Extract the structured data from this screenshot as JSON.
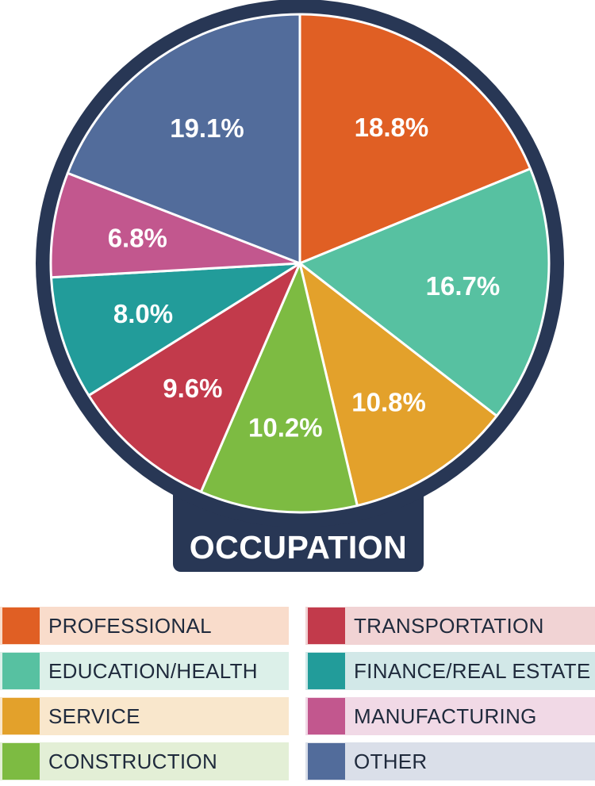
{
  "chart_data": {
    "type": "pie",
    "title": "OCCUPATION",
    "slices": [
      {
        "label": "PROFESSIONAL",
        "value": 18.8,
        "display": "18.8%",
        "color": "#e05f24",
        "legend_bg": "#f9dccb"
      },
      {
        "label": "EDUCATION/HEALTH",
        "value": 16.7,
        "display": "16.7%",
        "color": "#57c1a1",
        "legend_bg": "#dcf0e9"
      },
      {
        "label": "SERVICE",
        "value": 10.8,
        "display": "10.8%",
        "color": "#e3a12b",
        "legend_bg": "#f9e7cc"
      },
      {
        "label": "CONSTRUCTION",
        "value": 10.2,
        "display": "10.2%",
        "color": "#7dbb42",
        "legend_bg": "#e3efd6"
      },
      {
        "label": "TRANSPORTATION",
        "value": 9.6,
        "display": "9.6%",
        "color": "#c23a4b",
        "legend_bg": "#f1d3d4"
      },
      {
        "label": "FINANCE/REAL ESTATE",
        "value": 8.0,
        "display": "8.0%",
        "color": "#229c9a",
        "legend_bg": "#d2e8e8"
      },
      {
        "label": "MANUFACTURING",
        "value": 6.8,
        "display": "6.8%",
        "color": "#c2578e",
        "legend_bg": "#f1d9e6"
      },
      {
        "label": "OTHER",
        "value": 19.1,
        "display": "19.1%",
        "color": "#526c9b",
        "legend_bg": "#dadfe9"
      }
    ],
    "frame_color": "#283755",
    "legend_placement": "bottom"
  }
}
